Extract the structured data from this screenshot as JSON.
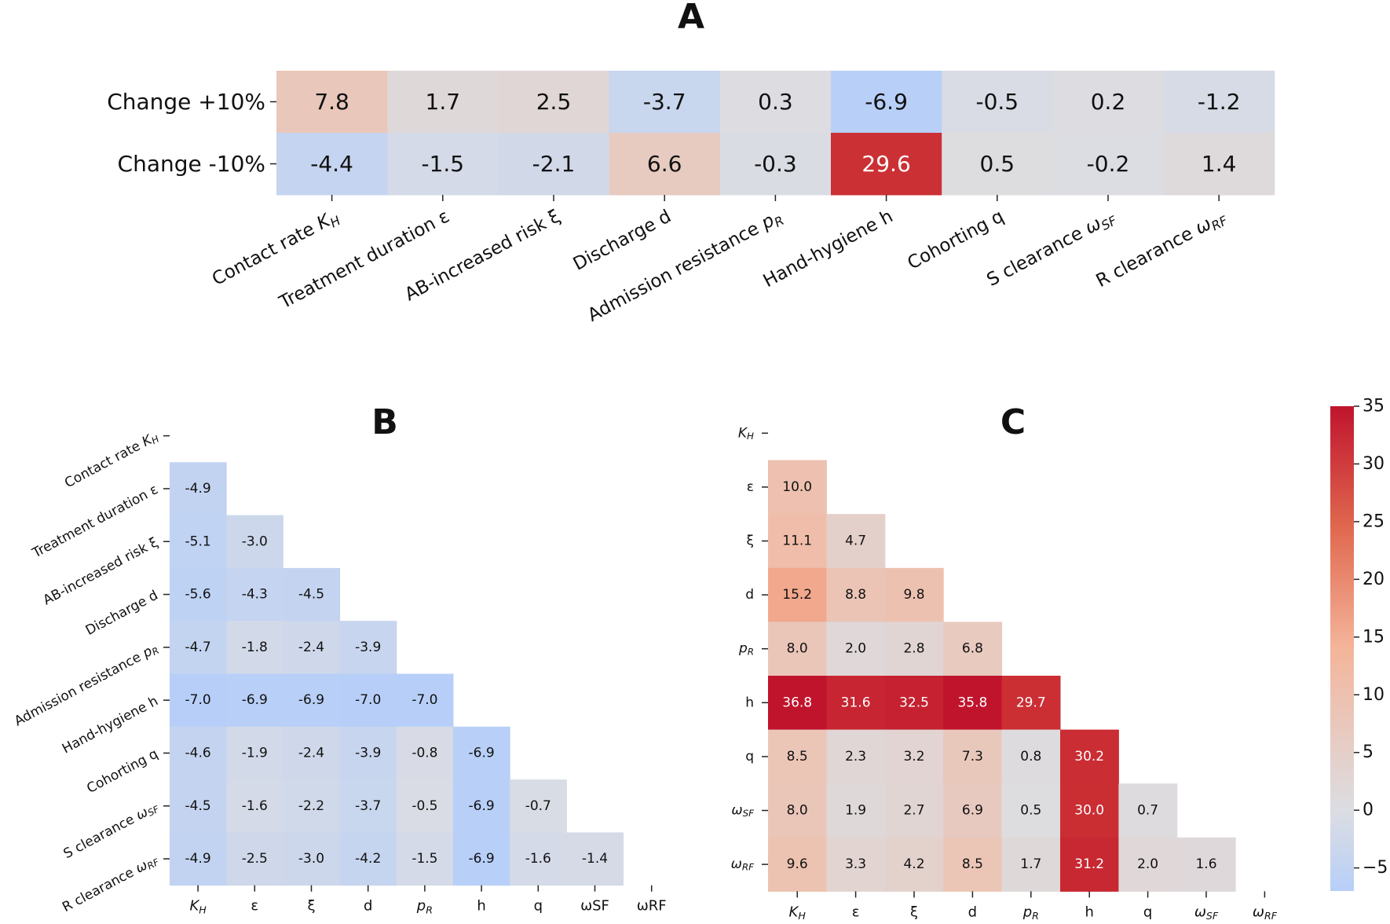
{
  "chart_data": [
    {
      "type": "heatmap",
      "title": "A",
      "row_labels": [
        "Change +10%",
        "Change -10%"
      ],
      "col_labels": [
        "Contact rate K_H",
        "Treatment duration ε",
        "AB-increased risk ξ",
        "Discharge d",
        "Admission resistance p_R",
        "Hand-hygiene h",
        "Cohorting q",
        "S clearance ω_SF",
        "R clearance ω_RF"
      ],
      "values": [
        [
          7.8,
          1.7,
          2.5,
          -3.7,
          0.3,
          -6.9,
          -0.5,
          0.2,
          -1.2
        ],
        [
          -4.4,
          -1.5,
          -2.1,
          6.6,
          -0.3,
          29.6,
          0.5,
          -0.2,
          1.4
        ]
      ],
      "color_range": [
        -7,
        35
      ],
      "colormap": "coolwarm"
    },
    {
      "type": "heatmap",
      "title": "B",
      "row_labels": [
        "Contact rate K_H",
        "Treatment duration ε",
        "AB-increased risk ξ",
        "Discharge d",
        "Admission resistance p_R",
        "Hand-hygiene h",
        "Cohorting q",
        "S clearance ω_SF",
        "R clearance ω_RF"
      ],
      "col_labels": [
        "K_H",
        "ε",
        "ξ",
        "d",
        "p_R",
        "h",
        "q",
        "ωSF",
        "ωRF"
      ],
      "values": [
        [
          null,
          null,
          null,
          null,
          null,
          null,
          null,
          null,
          null
        ],
        [
          -4.9,
          null,
          null,
          null,
          null,
          null,
          null,
          null,
          null
        ],
        [
          -5.1,
          -3.0,
          null,
          null,
          null,
          null,
          null,
          null,
          null
        ],
        [
          -5.6,
          -4.3,
          -4.5,
          null,
          null,
          null,
          null,
          null,
          null
        ],
        [
          -4.7,
          -1.8,
          -2.4,
          -3.9,
          null,
          null,
          null,
          null,
          null
        ],
        [
          -7.0,
          -6.9,
          -6.9,
          -7.0,
          -7.0,
          null,
          null,
          null,
          null
        ],
        [
          -4.6,
          -1.9,
          -2.4,
          -3.9,
          -0.8,
          -6.9,
          null,
          null,
          null
        ],
        [
          -4.5,
          -1.6,
          -2.2,
          -3.7,
          -0.5,
          -6.9,
          -0.7,
          null,
          null
        ],
        [
          -4.9,
          -2.5,
          -3.0,
          -4.2,
          -1.5,
          -6.9,
          -1.6,
          -1.4,
          null
        ]
      ],
      "color_range": [
        -7,
        35
      ],
      "colormap": "coolwarm"
    },
    {
      "type": "heatmap",
      "title": "C",
      "row_labels": [
        "K_H",
        "ε",
        "ξ",
        "d",
        "p_R",
        "h",
        "q",
        "ω_SF",
        "ω_RF"
      ],
      "col_labels": [
        "K_H",
        "ε",
        "ξ",
        "d",
        "p_R",
        "h",
        "q",
        "ω_SF",
        "ω_RF"
      ],
      "values": [
        [
          null,
          null,
          null,
          null,
          null,
          null,
          null,
          null,
          null
        ],
        [
          10.0,
          null,
          null,
          null,
          null,
          null,
          null,
          null,
          null
        ],
        [
          11.1,
          4.7,
          null,
          null,
          null,
          null,
          null,
          null,
          null
        ],
        [
          15.2,
          8.8,
          9.8,
          null,
          null,
          null,
          null,
          null,
          null
        ],
        [
          8.0,
          2.0,
          2.8,
          6.8,
          null,
          null,
          null,
          null,
          null
        ],
        [
          36.8,
          31.6,
          32.5,
          35.8,
          29.7,
          null,
          null,
          null,
          null
        ],
        [
          8.5,
          2.3,
          3.2,
          7.3,
          0.8,
          30.2,
          null,
          null,
          null
        ],
        [
          8.0,
          1.9,
          2.7,
          6.9,
          0.5,
          30.0,
          0.7,
          null,
          null
        ],
        [
          9.6,
          3.3,
          4.2,
          8.5,
          1.7,
          31.2,
          2.0,
          1.6,
          null
        ]
      ],
      "color_range": [
        -7,
        35
      ],
      "colormap": "coolwarm",
      "colorbar": {
        "ticks": [
          35,
          30,
          25,
          20,
          15,
          10,
          5,
          0,
          -5
        ]
      }
    }
  ]
}
